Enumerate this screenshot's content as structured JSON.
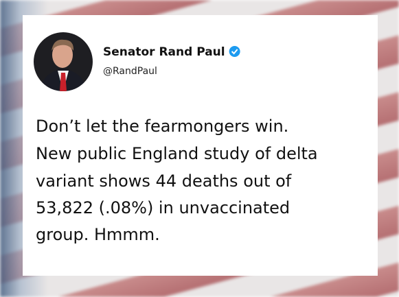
{
  "author": {
    "name": "Senator Rand Paul",
    "handle": "@RandPaul"
  },
  "tweet": {
    "lines": [
      "Don’t let the fearmongers win.",
      "New public England study of delta",
      "variant shows 44 deaths out of",
      "53,822 (.08%) in unvaccinated",
      "group. Hmmm."
    ]
  }
}
